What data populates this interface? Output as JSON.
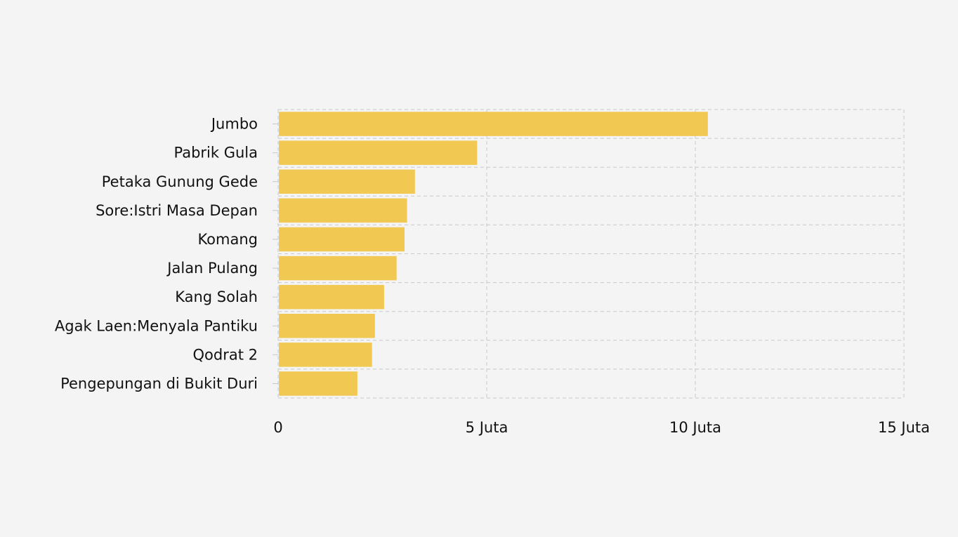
{
  "colors": {
    "background": "#f4f4f4",
    "bar": "#f1c851",
    "grid": "#c8c8c8",
    "text": "#111111"
  },
  "chart_data": {
    "type": "bar",
    "orientation": "horizontal",
    "categories": [
      "Jumbo",
      "Pabrik Gula",
      "Petaka Gunung Gede",
      "Sore:Istri Masa Depan",
      "Komang",
      "Jalan Pulang",
      "Kang Solah",
      "Agak Laen:Menyala Pantiku",
      "Qodrat 2",
      "Pengepungan di Bukit Duri"
    ],
    "values": [
      10300000,
      4770000,
      3280000,
      3090000,
      3030000,
      2840000,
      2540000,
      2320000,
      2250000,
      1900000
    ],
    "xlim": [
      0,
      15000000
    ],
    "xticks": [
      {
        "value": 0,
        "label": "0"
      },
      {
        "value": 5000000,
        "label": "5 Juta"
      },
      {
        "value": 10000000,
        "label": "10 Juta"
      },
      {
        "value": 15000000,
        "label": "15 Juta"
      }
    ],
    "title": "",
    "xlabel": "",
    "ylabel": "",
    "grid": true,
    "legend": "none"
  }
}
